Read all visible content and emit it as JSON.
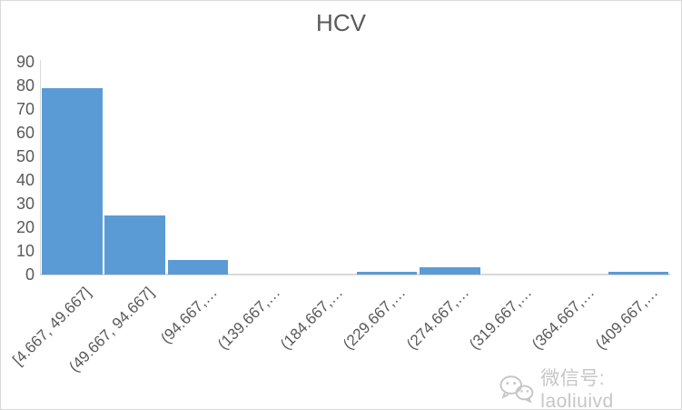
{
  "title": "HCV",
  "colors": {
    "bar": "#5B9BD5",
    "text": "#595959",
    "axis_line": "#D9D9D9",
    "border": "#D9D9D9",
    "watermark": "#C6C6C6"
  },
  "watermark": {
    "icon": "wechat-icon",
    "text": "微信号: laoliuivd"
  },
  "chart_data": {
    "type": "bar",
    "subtype": "histogram",
    "title": "HCV",
    "categories": [
      "[4.667, 49.667]",
      "(49.667, 94.667]",
      "(94.667,…",
      "(139.667,…",
      "(184.667,…",
      "(229.667,…",
      "(274.667,…",
      "(319.667,…",
      "(364.667,…",
      "(409.667,…"
    ],
    "values": [
      79,
      25,
      6,
      0,
      0,
      1,
      3,
      0,
      0,
      1
    ],
    "xlabel": "",
    "ylabel": "",
    "ylim": [
      0,
      90
    ],
    "yticks": [
      0,
      10,
      20,
      30,
      40,
      50,
      60,
      70,
      80,
      90
    ],
    "x_tick_rotation_deg": 45,
    "grid": false,
    "legend": "none"
  }
}
